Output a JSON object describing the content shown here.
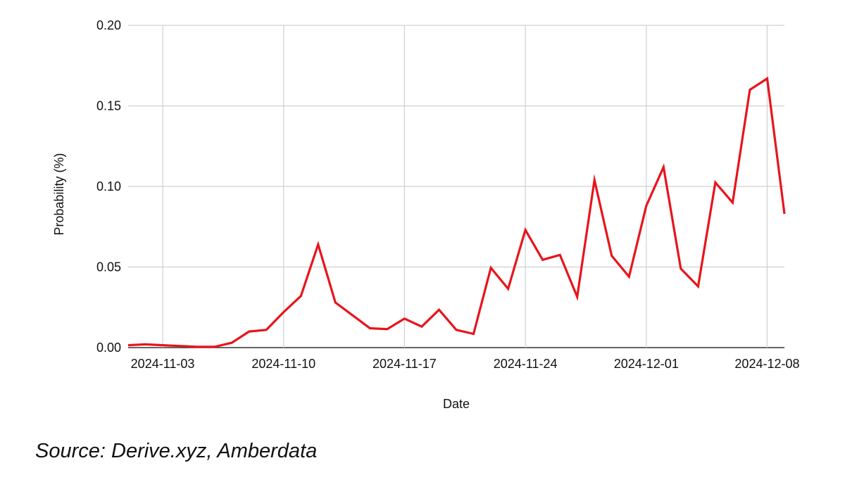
{
  "chart_data": {
    "type": "line",
    "xlabel": "Date",
    "ylabel": "Probability (%)",
    "ylim": [
      0,
      0.2
    ],
    "yticks": [
      "0.00",
      "0.05",
      "0.10",
      "0.15",
      "0.20"
    ],
    "xlim": [
      "2024-11-01",
      "2024-12-09"
    ],
    "xticks": [
      "2024-11-03",
      "2024-11-10",
      "2024-11-17",
      "2024-11-24",
      "2024-12-01",
      "2024-12-08"
    ],
    "grid": true,
    "series": [
      {
        "color": "#e8141b",
        "points": [
          [
            "2024-11-01",
            0.0015
          ],
          [
            "2024-11-02",
            0.002
          ],
          [
            "2024-11-03",
            0.0015
          ],
          [
            "2024-11-04",
            0.001
          ],
          [
            "2024-11-05",
            0.0005
          ],
          [
            "2024-11-06",
            0.0005
          ],
          [
            "2024-11-07",
            0.003
          ],
          [
            "2024-11-08",
            0.01
          ],
          [
            "2024-11-09",
            0.011
          ],
          [
            "2024-11-10",
            0.022
          ],
          [
            "2024-11-11",
            0.032
          ],
          [
            "2024-11-12",
            0.064
          ],
          [
            "2024-11-13",
            0.028
          ],
          [
            "2024-11-14",
            0.02
          ],
          [
            "2024-11-15",
            0.012
          ],
          [
            "2024-11-16",
            0.0115
          ],
          [
            "2024-11-17",
            0.018
          ],
          [
            "2024-11-18",
            0.013
          ],
          [
            "2024-11-19",
            0.0235
          ],
          [
            "2024-11-20",
            0.011
          ],
          [
            "2024-11-21",
            0.0085
          ],
          [
            "2024-11-22",
            0.0495
          ],
          [
            "2024-11-23",
            0.0365
          ],
          [
            "2024-11-24",
            0.073
          ],
          [
            "2024-11-25",
            0.0545
          ],
          [
            "2024-11-26",
            0.0575
          ],
          [
            "2024-11-27",
            0.0315
          ],
          [
            "2024-11-28",
            0.104
          ],
          [
            "2024-11-29",
            0.057
          ],
          [
            "2024-11-30",
            0.044
          ],
          [
            "2024-12-01",
            0.088
          ],
          [
            "2024-12-02",
            0.112
          ],
          [
            "2024-12-03",
            0.049
          ],
          [
            "2024-12-04",
            0.038
          ],
          [
            "2024-12-05",
            0.1025
          ],
          [
            "2024-12-06",
            0.09
          ],
          [
            "2024-12-07",
            0.16
          ],
          [
            "2024-12-08",
            0.167
          ],
          [
            "2024-12-09",
            0.083
          ]
        ]
      }
    ]
  },
  "source": "Source: Derive.xyz, Amberdata"
}
